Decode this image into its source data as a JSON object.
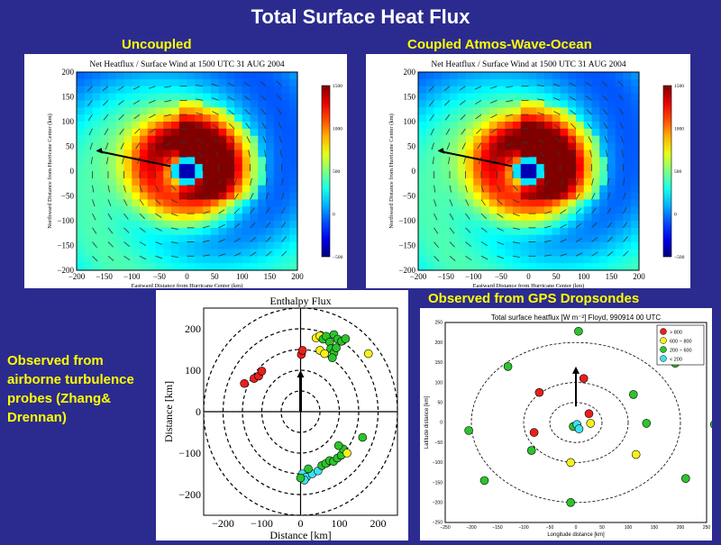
{
  "slide_title": "Total Surface Heat Flux",
  "labels": {
    "uncoupled": "Uncoupled",
    "coupled": "Coupled Atmos-Wave-Ocean",
    "gps": "Observed from GPS Dropsondes",
    "airborne": "Observed from airborne turbulence probes (Zhang& Drennan)"
  },
  "chart_data": [
    {
      "type": "heatmap",
      "id": "uncoupled",
      "title": "Net Heatflux / Surface Wind at 1500 UTC 31 AUG 2004",
      "xlabel": "Eastward Distance from Hurricane Center (km)",
      "ylabel": "Northward Distance from Hurricane Center (km)",
      "xlim": [
        -200,
        200
      ],
      "ylim": [
        -200,
        200
      ],
      "xticks": [
        -200,
        -150,
        -100,
        -50,
        0,
        50,
        100,
        150,
        200
      ],
      "yticks": [
        200,
        150,
        100,
        50,
        0,
        -50,
        -100,
        -150,
        -200
      ],
      "colorbar_ticks": [
        1500,
        1000,
        500,
        0,
        -500
      ],
      "colorbar_range": [
        -500,
        1500
      ]
    },
    {
      "type": "heatmap",
      "id": "coupled",
      "title": "Net Heatflux / Surface Wind at 1500 UTC 31 AUG 2004",
      "xlabel": "Eastward Distance from Hurricane Center (km)",
      "ylabel": "Northward Distance from Hurricane Center (km)",
      "xlim": [
        -200,
        200
      ],
      "ylim": [
        -200,
        200
      ],
      "xticks": [
        -200,
        -150,
        -100,
        -50,
        0,
        50,
        100,
        150,
        200
      ],
      "yticks": [
        200,
        150,
        100,
        50,
        0,
        -50,
        -100,
        -150,
        -200
      ],
      "colorbar_ticks": [
        1500,
        1000,
        500,
        0,
        -500
      ],
      "colorbar_range": [
        -500,
        1500
      ]
    },
    {
      "type": "scatter",
      "id": "enthalpy",
      "title": "Enthalpy Flux",
      "xlabel": "Distance [km]",
      "ylabel": "Distance [km]",
      "xlim": [
        -250,
        250
      ],
      "ylim": [
        -250,
        250
      ],
      "xticks": [
        -200,
        -100,
        0,
        100,
        200
      ],
      "yticks": [
        200,
        100,
        0,
        -100,
        -200
      ],
      "circles_km": [
        50,
        100,
        150,
        200,
        250
      ],
      "points": [
        {
          "x": -145,
          "y": 68,
          "c": "red"
        },
        {
          "x": -120,
          "y": 80,
          "c": "red"
        },
        {
          "x": -108,
          "y": 86,
          "c": "red"
        },
        {
          "x": -100,
          "y": 98,
          "c": "red"
        },
        {
          "x": 2,
          "y": 138,
          "c": "red"
        },
        {
          "x": 5,
          "y": 148,
          "c": "red"
        },
        {
          "x": 40,
          "y": 178,
          "c": "yellow"
        },
        {
          "x": 50,
          "y": 183,
          "c": "yellow"
        },
        {
          "x": 58,
          "y": 175,
          "c": "green"
        },
        {
          "x": 66,
          "y": 182,
          "c": "green"
        },
        {
          "x": 75,
          "y": 168,
          "c": "green"
        },
        {
          "x": 86,
          "y": 186,
          "c": "green"
        },
        {
          "x": 96,
          "y": 175,
          "c": "green"
        },
        {
          "x": 106,
          "y": 170,
          "c": "green"
        },
        {
          "x": 116,
          "y": 176,
          "c": "green"
        },
        {
          "x": 78,
          "y": 152,
          "c": "green"
        },
        {
          "x": 86,
          "y": 142,
          "c": "green"
        },
        {
          "x": 92,
          "y": 154,
          "c": "green"
        },
        {
          "x": 82,
          "y": 130,
          "c": "green"
        },
        {
          "x": 50,
          "y": 148,
          "c": "yellow"
        },
        {
          "x": 62,
          "y": 140,
          "c": "yellow"
        },
        {
          "x": 175,
          "y": 140,
          "c": "yellow"
        },
        {
          "x": 5,
          "y": -150,
          "c": "cyan"
        },
        {
          "x": 15,
          "y": -158,
          "c": "cyan"
        },
        {
          "x": 30,
          "y": -150,
          "c": "cyan"
        },
        {
          "x": 45,
          "y": -143,
          "c": "cyan"
        },
        {
          "x": 10,
          "y": -165,
          "c": "cyan"
        },
        {
          "x": 20,
          "y": -138,
          "c": "green"
        },
        {
          "x": 55,
          "y": -130,
          "c": "green"
        },
        {
          "x": 65,
          "y": -125,
          "c": "green"
        },
        {
          "x": 75,
          "y": -118,
          "c": "green"
        },
        {
          "x": 85,
          "y": -120,
          "c": "green"
        },
        {
          "x": 95,
          "y": -112,
          "c": "green"
        },
        {
          "x": 105,
          "y": -105,
          "c": "green"
        },
        {
          "x": 110,
          "y": -90,
          "c": "green"
        },
        {
          "x": 98,
          "y": -82,
          "c": "green"
        },
        {
          "x": 160,
          "y": -62,
          "c": "green"
        },
        {
          "x": 120,
          "y": -100,
          "c": "yellow"
        },
        {
          "x": 0,
          "y": -160,
          "c": "green"
        }
      ]
    },
    {
      "type": "scatter",
      "id": "gps",
      "title": "Total surface heatflux [W m⁻²] Floyd, 990914 00 UTC",
      "xlabel": "Longitude distance [km]",
      "ylabel": "Latitude distance [km]",
      "xlim": [
        -250,
        250
      ],
      "ylim": [
        -250,
        250
      ],
      "xticks": [
        -250,
        -200,
        -150,
        -100,
        -50,
        0,
        50,
        100,
        150,
        200,
        250
      ],
      "yticks": [
        250,
        200,
        150,
        100,
        50,
        0,
        -50,
        -100,
        -150,
        -200,
        -250
      ],
      "circles_km": [
        50,
        100,
        200
      ],
      "legend": [
        {
          "label": "> 800",
          "c": "red"
        },
        {
          "label": "600 ~ 800",
          "c": "yellow"
        },
        {
          "label": "200 ~ 600",
          "c": "green"
        },
        {
          "label": "< 200",
          "c": "cyan"
        }
      ],
      "points": [
        {
          "x": 5,
          "y": 228,
          "c": "green"
        },
        {
          "x": 190,
          "y": 148,
          "c": "green"
        },
        {
          "x": -130,
          "y": 140,
          "c": "green"
        },
        {
          "x": -70,
          "y": 75,
          "c": "red"
        },
        {
          "x": 15,
          "y": 110,
          "c": "red"
        },
        {
          "x": 110,
          "y": 70,
          "c": "green"
        },
        {
          "x": 25,
          "y": 22,
          "c": "red"
        },
        {
          "x": 135,
          "y": -2,
          "c": "green"
        },
        {
          "x": 265,
          "y": -5,
          "c": "green"
        },
        {
          "x": -205,
          "y": -20,
          "c": "green"
        },
        {
          "x": -80,
          "y": -25,
          "c": "red"
        },
        {
          "x": -5,
          "y": -10,
          "c": "green"
        },
        {
          "x": 2,
          "y": -5,
          "c": "cyan"
        },
        {
          "x": 6,
          "y": -16,
          "c": "cyan"
        },
        {
          "x": 28,
          "y": -2,
          "c": "yellow"
        },
        {
          "x": -85,
          "y": -70,
          "c": "green"
        },
        {
          "x": -10,
          "y": -100,
          "c": "yellow"
        },
        {
          "x": 115,
          "y": -80,
          "c": "yellow"
        },
        {
          "x": -175,
          "y": -145,
          "c": "green"
        },
        {
          "x": 210,
          "y": -140,
          "c": "green"
        },
        {
          "x": -10,
          "y": -200,
          "c": "green"
        }
      ]
    }
  ]
}
